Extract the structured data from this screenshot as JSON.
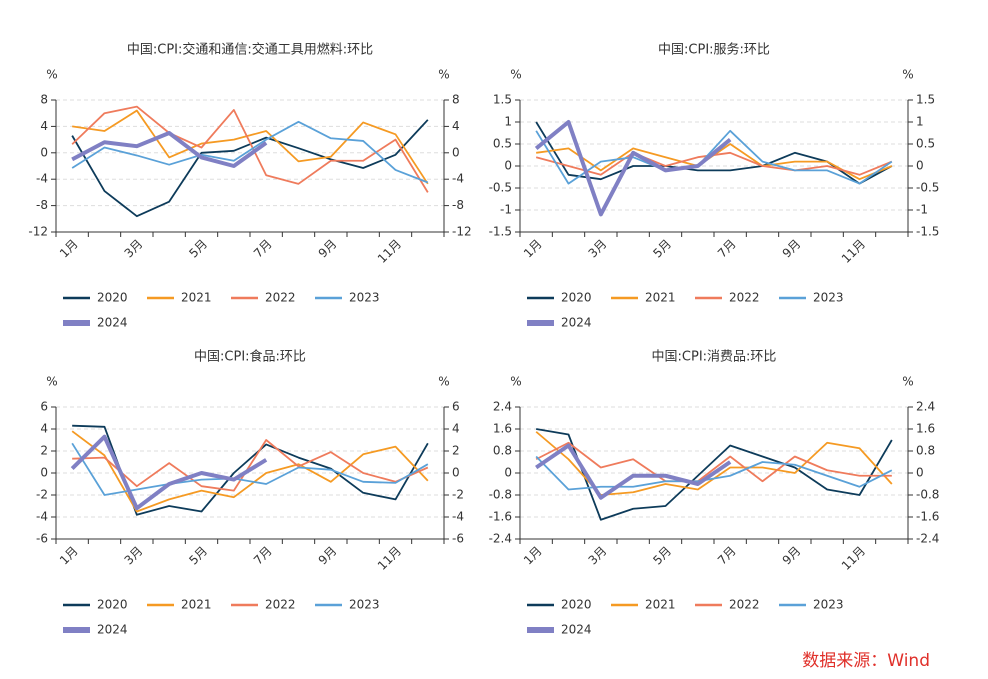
{
  "chart_data": [
    {
      "type": "line",
      "title": "中国:CPI:交通和通信:交通工具用燃料:环比",
      "ylabel": "%",
      "y2label": "%",
      "categories": [
        "1月",
        null,
        "3月",
        null,
        "5月",
        null,
        "7月",
        null,
        "9月",
        null,
        "11月",
        null
      ],
      "ylim": [
        -12,
        8
      ],
      "yticks": [
        -12,
        -8,
        -4,
        0,
        4,
        8
      ],
      "y2lim": [
        -12,
        8
      ],
      "y2ticks": [
        -12,
        -8,
        -4,
        0,
        4,
        8
      ],
      "grid": true,
      "series": [
        {
          "name": "2020",
          "color": "#0d3b5a",
          "values": [
            2.6,
            -5.8,
            -9.6,
            -7.4,
            0,
            0.3,
            2.3,
            0.7,
            -1,
            -2.3,
            -0.3,
            5
          ]
        },
        {
          "name": "2021",
          "color": "#f59a23",
          "values": [
            4,
            3.3,
            6.4,
            -0.7,
            1.4,
            2,
            3.3,
            -1.3,
            -0.6,
            4.6,
            2.8,
            -4.7
          ]
        },
        {
          "name": "2022",
          "color": "#ef7b5c",
          "values": [
            1.3,
            6,
            7,
            3,
            0.8,
            6.5,
            -3.4,
            -4.7,
            -1.2,
            -1.2,
            2,
            -6
          ]
        },
        {
          "name": "2023",
          "color": "#5aa1d8",
          "values": [
            -2.3,
            0.8,
            -0.4,
            -1.8,
            -0.3,
            -1.2,
            2,
            4.7,
            2.2,
            1.8,
            -2.6,
            -4.5
          ]
        },
        {
          "name": "2024",
          "color": "#8080c4",
          "values": [
            -1,
            1.6,
            1,
            3,
            -0.7,
            -2,
            1.5,
            null,
            null,
            null,
            null,
            null
          ]
        }
      ]
    },
    {
      "type": "line",
      "title": "中国:CPI:服务:环比",
      "ylabel": "%",
      "y2label": "%",
      "categories": [
        "1月",
        null,
        "3月",
        null,
        "5月",
        null,
        "7月",
        null,
        "9月",
        null,
        "11月",
        null
      ],
      "ylim": [
        -1.5,
        1.5
      ],
      "yticks": [
        -1.5,
        -1,
        -0.5,
        0,
        0.5,
        1,
        1.5
      ],
      "y2lim": [
        -1.5,
        1.5
      ],
      "y2ticks": [
        -1.5,
        -1,
        -0.5,
        0,
        0.5,
        1,
        1.5
      ],
      "grid": true,
      "series": [
        {
          "name": "2020",
          "color": "#0d3b5a",
          "values": [
            1,
            -0.2,
            -0.3,
            0,
            0,
            -0.1,
            -0.1,
            0,
            0.3,
            0.1,
            -0.4,
            0
          ]
        },
        {
          "name": "2021",
          "color": "#f59a23",
          "values": [
            0.3,
            0.4,
            -0.1,
            0.4,
            0.2,
            0,
            0.5,
            0,
            0.1,
            0.1,
            -0.3,
            0
          ]
        },
        {
          "name": "2022",
          "color": "#ef7b5c",
          "values": [
            0.2,
            0,
            -0.2,
            0.3,
            0,
            0.2,
            0.3,
            0,
            -0.1,
            0,
            -0.2,
            0.1
          ]
        },
        {
          "name": "2023",
          "color": "#5aa1d8",
          "values": [
            0.8,
            -0.4,
            0.1,
            0.2,
            -0.1,
            0,
            0.8,
            0.1,
            -0.1,
            -0.1,
            -0.4,
            0.1
          ]
        },
        {
          "name": "2024",
          "color": "#8080c4",
          "values": [
            0.4,
            1,
            -1.1,
            0.3,
            -0.1,
            0,
            0.6,
            null,
            null,
            null,
            null,
            null
          ]
        }
      ]
    },
    {
      "type": "line",
      "title": "中国:CPI:食品:环比",
      "ylabel": "%",
      "y2label": "%",
      "categories": [
        "1月",
        null,
        "3月",
        null,
        "5月",
        null,
        "7月",
        null,
        "9月",
        null,
        "11月",
        null
      ],
      "ylim": [
        -6,
        6
      ],
      "yticks": [
        -6,
        -4,
        -2,
        0,
        2,
        4,
        6
      ],
      "y2lim": [
        -6,
        6
      ],
      "y2ticks": [
        -6,
        -4,
        -2,
        0,
        2,
        4,
        6
      ],
      "grid": true,
      "series": [
        {
          "name": "2020",
          "color": "#0d3b5a",
          "values": [
            4.3,
            4.2,
            -3.8,
            -3,
            -3.5,
            0,
            2.6,
            1.4,
            0.4,
            -1.8,
            -2.4,
            2.7
          ]
        },
        {
          "name": "2021",
          "color": "#f59a23",
          "values": [
            3.8,
            1.6,
            -3.5,
            -2.4,
            -1.6,
            -2.2,
            0,
            0.8,
            -0.8,
            1.7,
            2.4,
            -0.7
          ]
        },
        {
          "name": "2022",
          "color": "#ef7b5c",
          "values": [
            1.3,
            1.4,
            -1.2,
            0.9,
            -1.2,
            -1.6,
            3,
            0.6,
            1.9,
            0,
            -0.8,
            0.5
          ]
        },
        {
          "name": "2023",
          "color": "#5aa1d8",
          "values": [
            2.7,
            -2,
            -1.5,
            -1,
            -0.6,
            -0.5,
            -1,
            0.5,
            0.3,
            -0.8,
            -0.9,
            0.8
          ]
        },
        {
          "name": "2024",
          "color": "#8080c4",
          "values": [
            0.4,
            3.3,
            -3.2,
            -1,
            0,
            -0.6,
            1.2,
            null,
            null,
            null,
            null,
            null
          ]
        }
      ]
    },
    {
      "type": "line",
      "title": "中国:CPI:消费品:环比",
      "ylabel": "%",
      "y2label": "%",
      "categories": [
        "1月",
        null,
        "3月",
        null,
        "5月",
        null,
        "7月",
        null,
        "9月",
        null,
        "11月",
        null
      ],
      "ylim": [
        -2.4,
        2.4
      ],
      "yticks": [
        -2.4,
        -1.6,
        -0.8,
        0,
        0.8,
        1.6,
        2.4
      ],
      "y2lim": [
        -2.4,
        2.4
      ],
      "y2ticks": [
        -2.4,
        -1.6,
        -0.8,
        0,
        0.8,
        1.6,
        2.4
      ],
      "grid": true,
      "series": [
        {
          "name": "2020",
          "color": "#0d3b5a",
          "values": [
            1.6,
            1.4,
            -1.7,
            -1.3,
            -1.2,
            -0.1,
            1,
            0.6,
            0.2,
            -0.6,
            -0.8,
            1.2
          ]
        },
        {
          "name": "2021",
          "color": "#f59a23",
          "values": [
            1.5,
            0.5,
            -0.8,
            -0.7,
            -0.4,
            -0.6,
            0.2,
            0.2,
            0,
            1.1,
            0.9,
            -0.4
          ]
        },
        {
          "name": "2022",
          "color": "#ef7b5c",
          "values": [
            0.5,
            1.1,
            0.2,
            0.5,
            -0.3,
            -0.3,
            0.6,
            -0.3,
            0.6,
            0.1,
            -0.1,
            -0.1
          ]
        },
        {
          "name": "2023",
          "color": "#5aa1d8",
          "values": [
            0.6,
            -0.6,
            -0.5,
            -0.5,
            -0.3,
            -0.3,
            -0.1,
            0.4,
            0.3,
            -0.1,
            -0.5,
            0.1
          ]
        },
        {
          "name": "2024",
          "color": "#8080c4",
          "values": [
            0.2,
            1,
            -0.9,
            -0.1,
            -0.1,
            -0.4,
            0.4,
            null,
            null,
            null,
            null,
            null
          ]
        }
      ]
    }
  ],
  "source": "数据来源：Wind"
}
